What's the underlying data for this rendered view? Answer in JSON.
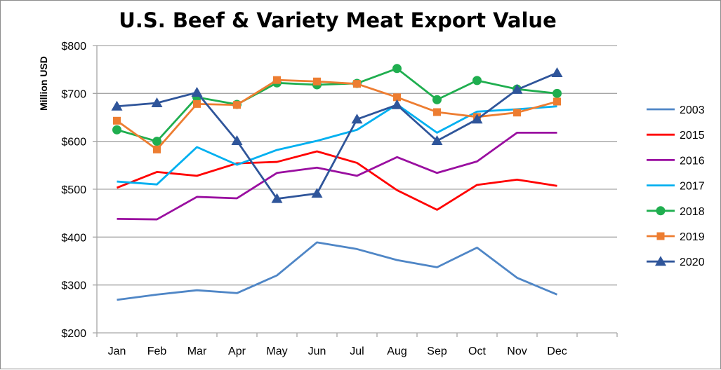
{
  "chart_data": {
    "type": "line",
    "title": "U.S. Beef & Variety Meat Export Value",
    "xlabel": "",
    "ylabel": "Million USD",
    "ylim": [
      200,
      800
    ],
    "yticks": [
      "$200",
      "$300",
      "$400",
      "$500",
      "$600",
      "$700",
      "$800"
    ],
    "ytick_values": [
      200,
      300,
      400,
      500,
      600,
      700,
      800
    ],
    "grid": true,
    "legend_position": "right",
    "categories": [
      "Jan",
      "Feb",
      "Mar",
      "Apr",
      "May",
      "Jun",
      "Jul",
      "Aug",
      "Sep",
      "Oct",
      "Nov",
      "Dec"
    ],
    "series": [
      {
        "name": "2003",
        "color": "#4f86c6",
        "marker": "none",
        "values": [
          269,
          280,
          289,
          283,
          320,
          389,
          375,
          352,
          337,
          378,
          315,
          280
        ]
      },
      {
        "name": "2015",
        "color": "#ff0000",
        "marker": "none",
        "values": [
          503,
          536,
          528,
          554,
          557,
          579,
          555,
          498,
          457,
          509,
          520,
          507
        ]
      },
      {
        "name": "2016",
        "color": "#9a0fa0",
        "marker": "none",
        "values": [
          438,
          437,
          484,
          481,
          534,
          545,
          528,
          567,
          534,
          558,
          618,
          618
        ]
      },
      {
        "name": "2017",
        "color": "#00b0f0",
        "marker": "none",
        "values": [
          516,
          510,
          588,
          551,
          582,
          601,
          624,
          677,
          618,
          662,
          667,
          673
        ]
      },
      {
        "name": "2018",
        "color": "#1fae4f",
        "marker": "circle",
        "values": [
          624,
          600,
          692,
          677,
          722,
          718,
          721,
          752,
          687,
          727,
          709,
          700
        ]
      },
      {
        "name": "2019",
        "color": "#ed7d31",
        "marker": "square",
        "values": [
          643,
          583,
          678,
          676,
          728,
          725,
          720,
          692,
          661,
          651,
          660,
          683
        ]
      },
      {
        "name": "2020",
        "color": "#2f559a",
        "marker": "triangle",
        "values": [
          673,
          680,
          702,
          601,
          480,
          491,
          646,
          676,
          601,
          646,
          708,
          743
        ]
      }
    ]
  }
}
